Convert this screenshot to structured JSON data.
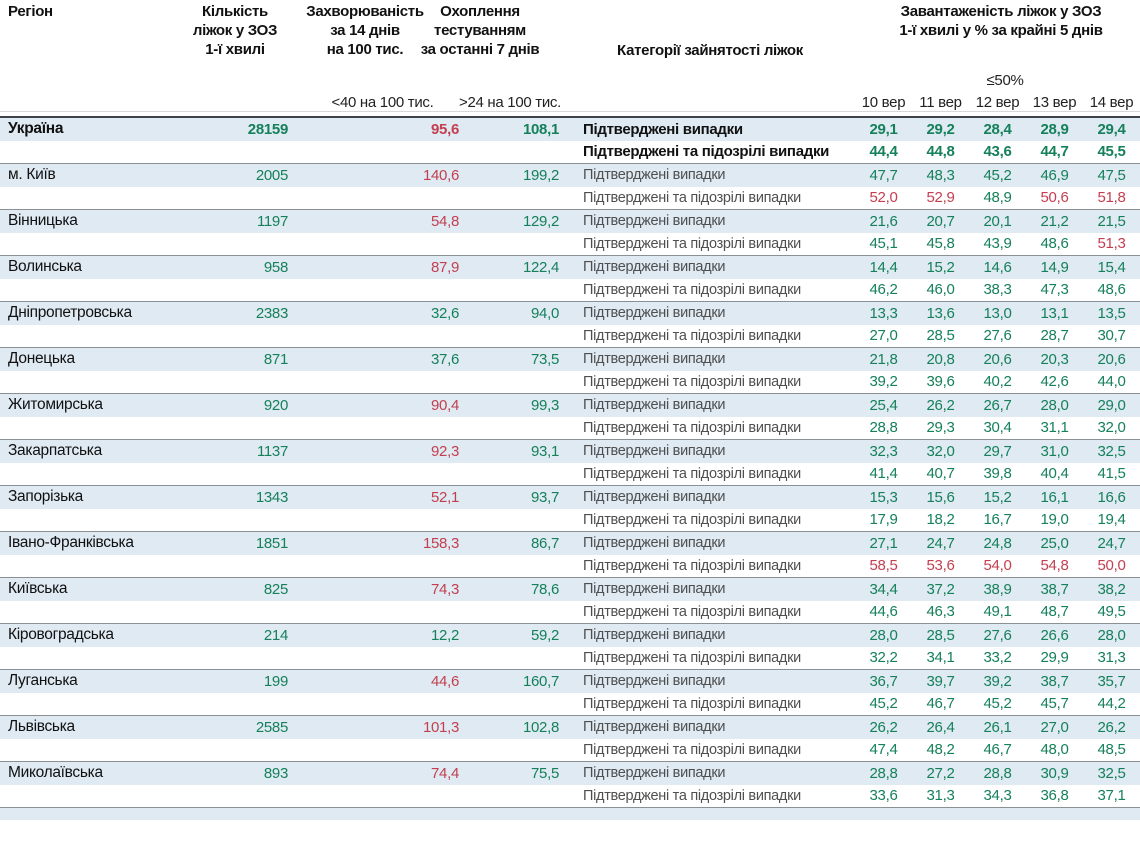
{
  "header": {
    "col_region": "Регіон",
    "col_beds": "Кількість\nліжок у ЗОЗ\n1-ї хвилі",
    "col_incidence": "Захворюваність\nза 14 днів\nна 100 тис.",
    "col_testing": "Охоплення\nтестуванням\nза останні 7 днів",
    "col_categories": "Категорії зайнятості ліжок",
    "col_load": "Завантаженість ліжок у ЗОЗ\n1-ї хвилі у % за крайні 5 днів",
    "threshold_incidence": "<40 на 100 тис.",
    "threshold_testing": ">24 на 100 тис.",
    "threshold_occupancy": "≤50%",
    "dates": [
      "10 вер",
      "11 вер",
      "12 вер",
      "13 вер",
      "14 вер"
    ]
  },
  "row_labels": {
    "confirmed": "Підтверджені випадки",
    "confirmed_suspected": "Підтверджені та підозрілі випадки"
  },
  "colors": {
    "value_green": "#15805a",
    "value_red": "#c33f50",
    "row_highlight_blue": "#dfeaf3"
  },
  "regions": [
    {
      "name": "Україна",
      "bold": true,
      "beds": "28159",
      "inc": "95,6",
      "inc_red": true,
      "test": "108,1",
      "conf": [
        "29,1",
        "29,2",
        "28,4",
        "28,9",
        "29,4"
      ],
      "susp": [
        "44,4",
        "44,8",
        "43,6",
        "44,7",
        "45,5"
      ]
    },
    {
      "name": "м. Київ",
      "beds": "2005",
      "inc": "140,6",
      "inc_red": true,
      "test": "199,2",
      "conf": [
        "47,7",
        "48,3",
        "45,2",
        "46,9",
        "47,5"
      ],
      "susp": [
        "52,0",
        "52,9",
        "48,9",
        "50,6",
        "51,8"
      ],
      "susp_red": [
        true,
        true,
        false,
        true,
        true
      ]
    },
    {
      "name": "Вінницька",
      "beds": "1197",
      "inc": "54,8",
      "inc_red": true,
      "test": "129,2",
      "conf": [
        "21,6",
        "20,7",
        "20,1",
        "21,2",
        "21,5"
      ],
      "susp": [
        "45,1",
        "45,8",
        "43,9",
        "48,6",
        "51,3"
      ],
      "susp_red": [
        false,
        false,
        false,
        false,
        true
      ]
    },
    {
      "name": "Волинська",
      "beds": "958",
      "inc": "87,9",
      "inc_red": true,
      "test": "122,4",
      "conf": [
        "14,4",
        "15,2",
        "14,6",
        "14,9",
        "15,4"
      ],
      "susp": [
        "46,2",
        "46,0",
        "38,3",
        "47,3",
        "48,6"
      ]
    },
    {
      "name": "Дніпропетровська",
      "beds": "2383",
      "inc": "32,6",
      "inc_red": false,
      "test": "94,0",
      "conf": [
        "13,3",
        "13,6",
        "13,0",
        "13,1",
        "13,5"
      ],
      "susp": [
        "27,0",
        "28,5",
        "27,6",
        "28,7",
        "30,7"
      ]
    },
    {
      "name": "Донецька",
      "beds": "871",
      "inc": "37,6",
      "inc_red": false,
      "test": "73,5",
      "conf": [
        "21,8",
        "20,8",
        "20,6",
        "20,3",
        "20,6"
      ],
      "susp": [
        "39,2",
        "39,6",
        "40,2",
        "42,6",
        "44,0"
      ]
    },
    {
      "name": "Житомирська",
      "beds": "920",
      "inc": "90,4",
      "inc_red": true,
      "test": "99,3",
      "conf": [
        "25,4",
        "26,2",
        "26,7",
        "28,0",
        "29,0"
      ],
      "susp": [
        "28,8",
        "29,3",
        "30,4",
        "31,1",
        "32,0"
      ]
    },
    {
      "name": "Закарпатська",
      "beds": "1137",
      "inc": "92,3",
      "inc_red": true,
      "test": "93,1",
      "conf": [
        "32,3",
        "32,0",
        "29,7",
        "31,0",
        "32,5"
      ],
      "susp": [
        "41,4",
        "40,7",
        "39,8",
        "40,4",
        "41,5"
      ]
    },
    {
      "name": "Запорізька",
      "beds": "1343",
      "inc": "52,1",
      "inc_red": true,
      "test": "93,7",
      "conf": [
        "15,3",
        "15,6",
        "15,2",
        "16,1",
        "16,6"
      ],
      "susp": [
        "17,9",
        "18,2",
        "16,7",
        "19,0",
        "19,4"
      ]
    },
    {
      "name": "Івано-Франківська",
      "beds": "1851",
      "inc": "158,3",
      "inc_red": true,
      "test": "86,7",
      "conf": [
        "27,1",
        "24,7",
        "24,8",
        "25,0",
        "24,7"
      ],
      "susp": [
        "58,5",
        "53,6",
        "54,0",
        "54,8",
        "50,0"
      ],
      "susp_red": [
        true,
        true,
        true,
        true,
        true
      ]
    },
    {
      "name": "Київська",
      "beds": "825",
      "inc": "74,3",
      "inc_red": true,
      "test": "78,6",
      "conf": [
        "34,4",
        "37,2",
        "38,9",
        "38,7",
        "38,2"
      ],
      "susp": [
        "44,6",
        "46,3",
        "49,1",
        "48,7",
        "49,5"
      ]
    },
    {
      "name": "Кіровоградська",
      "beds": "214",
      "inc": "12,2",
      "inc_red": false,
      "test": "59,2",
      "conf": [
        "28,0",
        "28,5",
        "27,6",
        "26,6",
        "28,0"
      ],
      "susp": [
        "32,2",
        "34,1",
        "33,2",
        "29,9",
        "31,3"
      ]
    },
    {
      "name": "Луганська",
      "beds": "199",
      "inc": "44,6",
      "inc_red": true,
      "test": "160,7",
      "conf": [
        "36,7",
        "39,7",
        "39,2",
        "38,7",
        "35,7"
      ],
      "susp": [
        "45,2",
        "46,7",
        "45,2",
        "45,7",
        "44,2"
      ]
    },
    {
      "name": "Львівська",
      "beds": "2585",
      "inc": "101,3",
      "inc_red": true,
      "test": "102,8",
      "conf": [
        "26,2",
        "26,4",
        "26,1",
        "27,0",
        "26,2"
      ],
      "susp": [
        "47,4",
        "48,2",
        "46,7",
        "48,0",
        "48,5"
      ]
    },
    {
      "name": "Миколаївська",
      "beds": "893",
      "inc": "74,4",
      "inc_red": true,
      "test": "75,5",
      "conf": [
        "28,8",
        "27,2",
        "28,8",
        "30,9",
        "32,5"
      ],
      "susp": [
        "33,6",
        "31,3",
        "34,3",
        "36,8",
        "37,1"
      ]
    }
  ]
}
